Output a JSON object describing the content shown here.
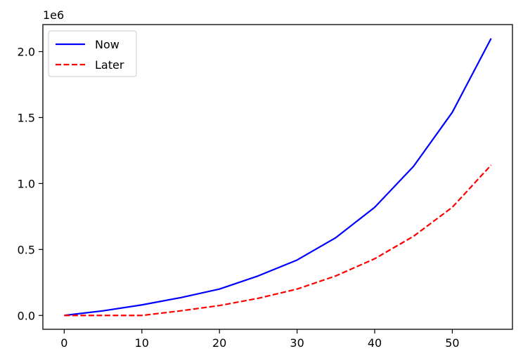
{
  "chart_data": {
    "type": "line",
    "title": "",
    "xlabel": "",
    "ylabel": "",
    "offset_label": "1e6",
    "xlim": [
      -2.75,
      57.75
    ],
    "ylim": [
      -105000,
      2205000
    ],
    "xticks": [
      0,
      10,
      20,
      30,
      40,
      50
    ],
    "xtick_labels": [
      "0",
      "10",
      "20",
      "30",
      "40",
      "50"
    ],
    "yticks": [
      0,
      500000,
      1000000,
      1500000,
      2000000
    ],
    "ytick_labels": [
      "0.0",
      "0.5",
      "1.0",
      "1.5",
      "2.0"
    ],
    "grid": false,
    "legend_position": "top-left",
    "series": [
      {
        "name": "Now",
        "color": "#0000ff",
        "style": "solid",
        "x": [
          0,
          5,
          10,
          15,
          20,
          25,
          30,
          35,
          40,
          45,
          50,
          55
        ],
        "y": [
          0,
          35000,
          80000,
          135000,
          200000,
          300000,
          420000,
          590000,
          820000,
          1130000,
          1540000,
          2100000
        ]
      },
      {
        "name": "Later",
        "color": "#ff0000",
        "style": "dashed",
        "x": [
          0,
          5,
          10,
          15,
          20,
          25,
          30,
          35,
          40,
          45,
          50,
          55
        ],
        "y": [
          0,
          0,
          0,
          35000,
          75000,
          130000,
          200000,
          300000,
          430000,
          600000,
          820000,
          1140000
        ]
      }
    ]
  }
}
